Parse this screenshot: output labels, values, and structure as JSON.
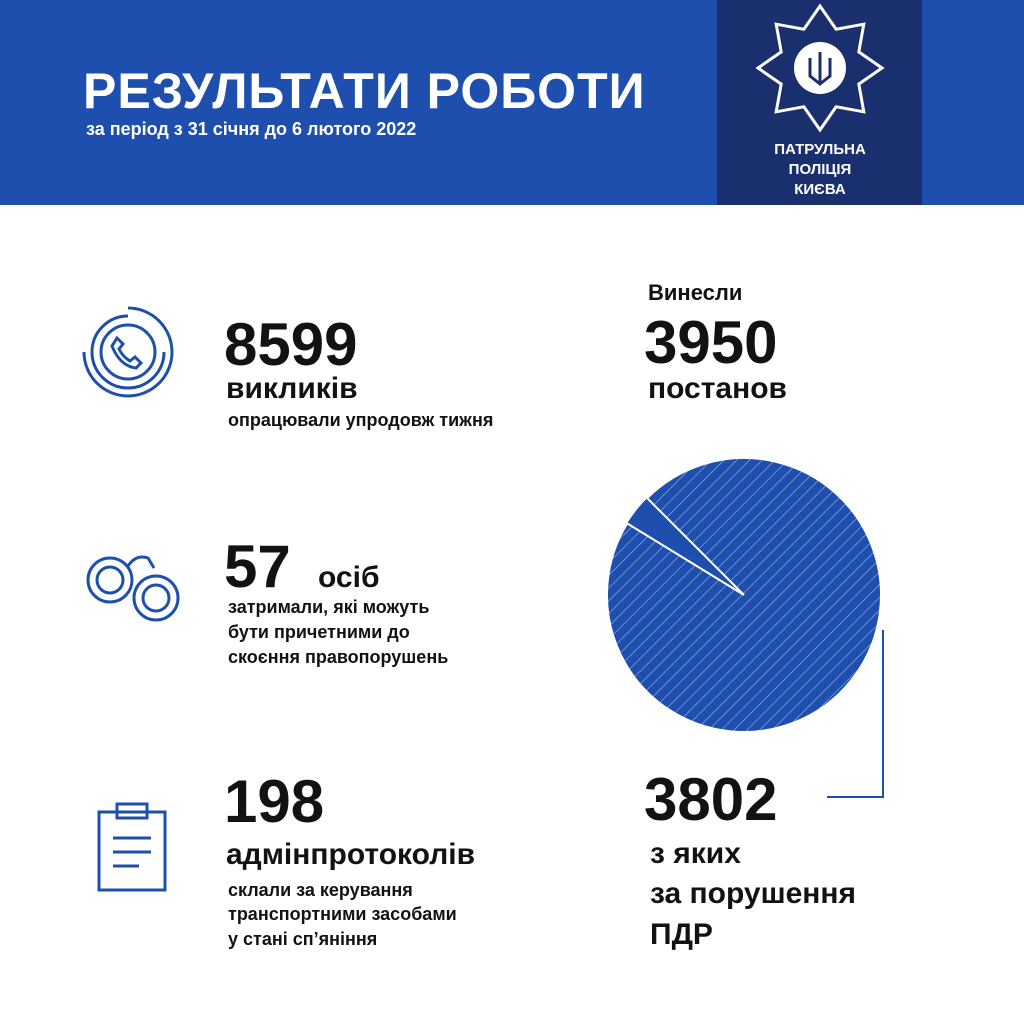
{
  "header": {
    "title": "РЕЗУЛЬТАТИ РОБОТИ",
    "subtitle": "за період з 31 січня до 6 лютого 2022"
  },
  "badge": {
    "lines": [
      "ПАТРУЛЬНА",
      "ПОЛІЦІЯ",
      "КИЄВА"
    ]
  },
  "stats": {
    "calls": {
      "value": 8599,
      "label": "викликів",
      "note": "опрацювали упродовж тижня"
    },
    "detained": {
      "value": 57,
      "unit": "осіб",
      "note": [
        "затримали, які можуть",
        "бути причетними до",
        "скоєння правопорушень"
      ]
    },
    "protocols": {
      "value": 198,
      "label": "адмінпротоколів",
      "note": [
        "склали за керування",
        "транспортними засобами",
        "у стані сп’яніння"
      ]
    },
    "fines": {
      "intro": "Винесли",
      "value": 3950,
      "label": "постанов"
    },
    "violations": {
      "value": 3802,
      "lines": [
        "з яких",
        "за порушення",
        "ПДР"
      ]
    }
  }
}
